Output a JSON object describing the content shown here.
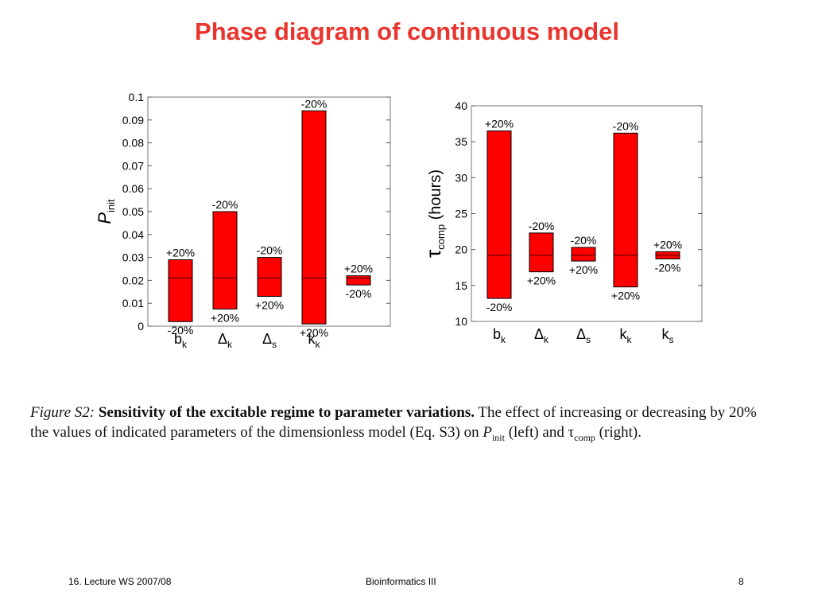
{
  "slide": {
    "title": "Phase diagram of continuous model"
  },
  "colors": {
    "title": "#e8352d",
    "bar_fill": "#ff0000",
    "bar_stroke": "#000000"
  },
  "chart_data": [
    {
      "type": "bar",
      "chart_style": "floating range bars with baseline",
      "categories": [
        "b_k",
        "Δ_k",
        "Δ_s",
        "k_k",
        "k_s"
      ],
      "category_labels": [
        {
          "main": "b",
          "sub": "k"
        },
        {
          "main": "Δ",
          "sub": "k"
        },
        {
          "main": "Δ",
          "sub": "s"
        },
        {
          "main": "k",
          "sub": "k"
        },
        {
          "main": "",
          "sub": ""
        }
      ],
      "ylabel": {
        "main": "P",
        "sub": "init"
      },
      "xlabel": "",
      "ylim": [
        0,
        0.1
      ],
      "yticks": [
        "0",
        "0.01",
        "0.02",
        "0.03",
        "0.04",
        "0.05",
        "0.06",
        "0.07",
        "0.08",
        "0.09",
        "0.1"
      ],
      "ytick_values": [
        0,
        0.01,
        0.02,
        0.03,
        0.04,
        0.05,
        0.06,
        0.07,
        0.08,
        0.09,
        0.1
      ],
      "baseline": 0.021,
      "grid": false,
      "bars": [
        {
          "low": 0.002,
          "high": 0.029,
          "top_label": "+20%",
          "bottom_label": "-20%"
        },
        {
          "low": 0.0075,
          "high": 0.05,
          "top_label": "-20%",
          "bottom_label": "+20%"
        },
        {
          "low": 0.013,
          "high": 0.03,
          "top_label": "-20%",
          "bottom_label": "+20%"
        },
        {
          "low": 0.001,
          "high": 0.094,
          "top_label": "-20%",
          "bottom_label": "+20%"
        },
        {
          "low": 0.018,
          "high": 0.022,
          "top_label": "+20%",
          "bottom_label": "-20%"
        }
      ]
    },
    {
      "type": "bar",
      "chart_style": "floating range bars with baseline",
      "categories": [
        "b_k",
        "Δ_k",
        "Δ_s",
        "k_k",
        "k_s"
      ],
      "category_labels": [
        {
          "main": "b",
          "sub": "k"
        },
        {
          "main": "Δ",
          "sub": "k"
        },
        {
          "main": "Δ",
          "sub": "s"
        },
        {
          "main": "k",
          "sub": "k"
        },
        {
          "main": "k",
          "sub": "s"
        }
      ],
      "ylabel": {
        "main": "τ",
        "sub": "comp",
        "unit": "(hours)"
      },
      "xlabel": "",
      "ylim": [
        10,
        40
      ],
      "yticks": [
        "10",
        "15",
        "20",
        "25",
        "30",
        "35",
        "40"
      ],
      "ytick_values": [
        10,
        15,
        20,
        25,
        30,
        35,
        40
      ],
      "baseline": 19.2,
      "grid": false,
      "bars": [
        {
          "low": 13.2,
          "high": 36.5,
          "top_label": "+20%",
          "bottom_label": "-20%"
        },
        {
          "low": 16.9,
          "high": 22.3,
          "top_label": "-20%",
          "bottom_label": "+20%"
        },
        {
          "low": 18.4,
          "high": 20.3,
          "top_label": "-20%",
          "bottom_label": "+20%"
        },
        {
          "low": 14.8,
          "high": 36.2,
          "top_label": "-20%",
          "bottom_label": "+20%"
        },
        {
          "low": 18.7,
          "high": 19.7,
          "top_label": "+20%",
          "bottom_label": "-20%"
        }
      ]
    }
  ],
  "caption": {
    "figure_label": "Figure S2:",
    "bold_text": "Sensitivity of the excitable regime to parameter variations.",
    "text_1": "The effect of increasing or decreasing by 20% the values of indicated parameters of the dimensionless model (Eq. S3) on",
    "p_main": "P",
    "p_sub": "init",
    "text_2": "(left) and",
    "tau_main": "τ",
    "tau_sub": "comp",
    "text_3": "(right)."
  },
  "footer": {
    "left": "16. Lecture WS 2007/08",
    "center": "Bioinformatics III",
    "page": "8"
  }
}
